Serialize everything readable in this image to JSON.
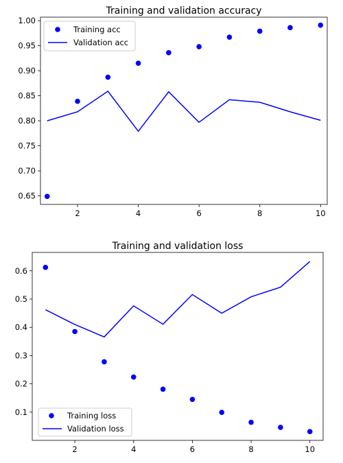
{
  "chart_data": [
    {
      "type": "line",
      "title": "Training and validation accuracy",
      "xlabel": "",
      "ylabel": "",
      "xlim": [
        0.78,
        10.22
      ],
      "ylim": [
        0.633,
        1.007
      ],
      "xticks": [
        2,
        4,
        6,
        8,
        10
      ],
      "xtick_labels": [
        "2",
        "4",
        "6",
        "8",
        "10"
      ],
      "yticks": [
        0.65,
        0.7,
        0.75,
        0.8,
        0.85,
        0.9,
        0.95,
        1.0
      ],
      "ytick_labels": [
        "0.65",
        "0.70",
        "0.75",
        "0.80",
        "0.85",
        "0.90",
        "0.95",
        "1.00"
      ],
      "grid": false,
      "legend_position": "top-left",
      "series": [
        {
          "name": "Training acc",
          "style": "points",
          "color": "#0000ff",
          "x": [
            1,
            2,
            3,
            4,
            5,
            6,
            7,
            8,
            9,
            10
          ],
          "values": [
            0.649,
            0.839,
            0.887,
            0.915,
            0.936,
            0.948,
            0.967,
            0.979,
            0.986,
            0.991
          ]
        },
        {
          "name": "Validation acc",
          "style": "line",
          "color": "#0000ff",
          "x": [
            1,
            2,
            3,
            4,
            5,
            6,
            7,
            8,
            9,
            10
          ],
          "values": [
            0.8,
            0.818,
            0.859,
            0.779,
            0.858,
            0.797,
            0.842,
            0.837,
            0.818,
            0.801
          ]
        }
      ]
    },
    {
      "type": "line",
      "title": "Training and validation loss",
      "xlabel": "",
      "ylabel": "",
      "xlim": [
        0.55,
        10.45
      ],
      "ylim": [
        0.0,
        0.665
      ],
      "xticks": [
        2,
        4,
        6,
        8,
        10
      ],
      "xtick_labels": [
        "2",
        "4",
        "6",
        "8",
        "10"
      ],
      "yticks": [
        0.1,
        0.2,
        0.3,
        0.4,
        0.5,
        0.6
      ],
      "ytick_labels": [
        "0.1",
        "0.2",
        "0.3",
        "0.4",
        "0.5",
        "0.6"
      ],
      "grid": false,
      "legend_position": "bottom-left",
      "series": [
        {
          "name": "Training loss",
          "style": "points",
          "color": "#0000ff",
          "x": [
            1,
            2,
            3,
            4,
            5,
            6,
            7,
            8,
            9,
            10
          ],
          "values": [
            0.612,
            0.385,
            0.278,
            0.224,
            0.181,
            0.145,
            0.099,
            0.064,
            0.046,
            0.031
          ]
        },
        {
          "name": "Validation loss",
          "style": "line",
          "color": "#0000ff",
          "x": [
            1,
            2,
            3,
            4,
            5,
            6,
            7,
            8,
            9,
            10
          ],
          "values": [
            0.462,
            0.41,
            0.366,
            0.476,
            0.411,
            0.516,
            0.45,
            0.508,
            0.542,
            0.633
          ]
        }
      ]
    }
  ]
}
